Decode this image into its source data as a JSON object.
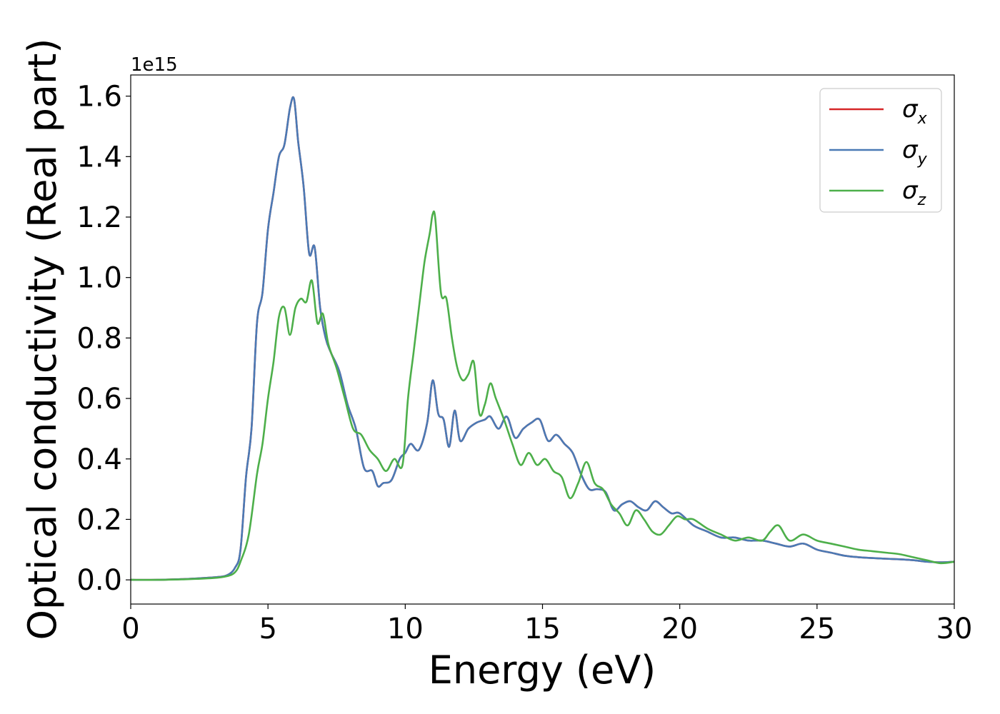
{
  "chart_data": {
    "type": "line",
    "xlabel": "Energy (eV)",
    "ylabel": "Optical conductivity (Real part)",
    "y_offset_text": "1e15",
    "y_scale": 1000000000000000.0,
    "xlim": [
      0,
      30
    ],
    "ylim": [
      -0.08,
      1.67
    ],
    "xticks": [
      0,
      5,
      10,
      15,
      20,
      25,
      30
    ],
    "xtick_labels": [
      "0",
      "5",
      "10",
      "15",
      "20",
      "25",
      "30"
    ],
    "yticks": [
      0.0,
      0.2,
      0.4,
      0.6,
      0.8,
      1.0,
      1.2,
      1.4,
      1.6
    ],
    "ytick_labels": [
      "0.0",
      "0.2",
      "0.4",
      "0.6",
      "0.8",
      "1.0",
      "1.2",
      "1.4",
      "1.6"
    ],
    "grid": false,
    "legend_position": "top-right",
    "series": [
      {
        "name": "σx",
        "symbol": "σ",
        "sub": "x",
        "color": "#d62728",
        "x": [
          0,
          1,
          2,
          3,
          3.5,
          3.8,
          4.0,
          4.2,
          4.4,
          4.6,
          4.8,
          5.0,
          5.2,
          5.4,
          5.6,
          5.8,
          5.95,
          6.1,
          6.3,
          6.5,
          6.7,
          6.9,
          7.1,
          7.3,
          7.6,
          7.9,
          8.2,
          8.5,
          8.8,
          9.0,
          9.2,
          9.5,
          9.8,
          10.0,
          10.2,
          10.5,
          10.8,
          11.0,
          11.2,
          11.4,
          11.6,
          11.8,
          12.0,
          12.3,
          12.6,
          12.9,
          13.1,
          13.4,
          13.7,
          14.0,
          14.3,
          14.6,
          14.9,
          15.2,
          15.5,
          15.8,
          16.1,
          16.4,
          16.7,
          17.0,
          17.3,
          17.6,
          17.9,
          18.2,
          18.5,
          18.8,
          19.1,
          19.4,
          19.7,
          20.0,
          20.5,
          21.0,
          21.5,
          22.0,
          22.5,
          23.0,
          23.5,
          24.0,
          24.5,
          25.0,
          25.5,
          26.0,
          26.5,
          27.0,
          27.5,
          28.0,
          28.5,
          29.0,
          29.5,
          30.0
        ],
        "y": [
          0.0,
          0.0,
          0.003,
          0.008,
          0.015,
          0.04,
          0.1,
          0.34,
          0.5,
          0.85,
          0.95,
          1.16,
          1.28,
          1.4,
          1.44,
          1.56,
          1.59,
          1.45,
          1.3,
          1.08,
          1.1,
          0.9,
          0.8,
          0.75,
          0.69,
          0.58,
          0.5,
          0.37,
          0.36,
          0.31,
          0.32,
          0.33,
          0.4,
          0.42,
          0.45,
          0.43,
          0.52,
          0.66,
          0.55,
          0.53,
          0.44,
          0.56,
          0.46,
          0.5,
          0.52,
          0.53,
          0.54,
          0.5,
          0.54,
          0.47,
          0.5,
          0.52,
          0.53,
          0.46,
          0.48,
          0.45,
          0.42,
          0.35,
          0.3,
          0.3,
          0.29,
          0.23,
          0.25,
          0.26,
          0.24,
          0.23,
          0.26,
          0.24,
          0.22,
          0.22,
          0.18,
          0.16,
          0.14,
          0.14,
          0.13,
          0.13,
          0.12,
          0.11,
          0.12,
          0.1,
          0.09,
          0.08,
          0.075,
          0.072,
          0.07,
          0.068,
          0.065,
          0.06,
          0.058,
          0.06
        ]
      },
      {
        "name": "σy",
        "symbol": "σ",
        "sub": "y",
        "color": "#4a7ab5",
        "x": [
          0,
          1,
          2,
          3,
          3.5,
          3.8,
          4.0,
          4.2,
          4.4,
          4.6,
          4.8,
          5.0,
          5.2,
          5.4,
          5.6,
          5.8,
          5.95,
          6.1,
          6.3,
          6.5,
          6.7,
          6.9,
          7.1,
          7.3,
          7.6,
          7.9,
          8.2,
          8.5,
          8.8,
          9.0,
          9.2,
          9.5,
          9.8,
          10.0,
          10.2,
          10.5,
          10.8,
          11.0,
          11.2,
          11.4,
          11.6,
          11.8,
          12.0,
          12.3,
          12.6,
          12.9,
          13.1,
          13.4,
          13.7,
          14.0,
          14.3,
          14.6,
          14.9,
          15.2,
          15.5,
          15.8,
          16.1,
          16.4,
          16.7,
          17.0,
          17.3,
          17.6,
          17.9,
          18.2,
          18.5,
          18.8,
          19.1,
          19.4,
          19.7,
          20.0,
          20.5,
          21.0,
          21.5,
          22.0,
          22.5,
          23.0,
          23.5,
          24.0,
          24.5,
          25.0,
          25.5,
          26.0,
          26.5,
          27.0,
          27.5,
          28.0,
          28.5,
          29.0,
          29.5,
          30.0
        ],
        "y": [
          0.0,
          0.0,
          0.003,
          0.008,
          0.015,
          0.04,
          0.1,
          0.34,
          0.5,
          0.85,
          0.95,
          1.16,
          1.28,
          1.4,
          1.44,
          1.56,
          1.59,
          1.45,
          1.3,
          1.08,
          1.1,
          0.9,
          0.8,
          0.75,
          0.69,
          0.58,
          0.5,
          0.37,
          0.36,
          0.31,
          0.32,
          0.33,
          0.4,
          0.42,
          0.45,
          0.43,
          0.52,
          0.66,
          0.55,
          0.53,
          0.44,
          0.56,
          0.46,
          0.5,
          0.52,
          0.53,
          0.54,
          0.5,
          0.54,
          0.47,
          0.5,
          0.52,
          0.53,
          0.46,
          0.48,
          0.45,
          0.42,
          0.35,
          0.3,
          0.3,
          0.29,
          0.23,
          0.25,
          0.26,
          0.24,
          0.23,
          0.26,
          0.24,
          0.22,
          0.22,
          0.18,
          0.16,
          0.14,
          0.14,
          0.13,
          0.13,
          0.12,
          0.11,
          0.12,
          0.1,
          0.09,
          0.08,
          0.075,
          0.072,
          0.07,
          0.068,
          0.065,
          0.06,
          0.058,
          0.06
        ]
      },
      {
        "name": "σz",
        "symbol": "σ",
        "sub": "z",
        "color": "#4daf4a",
        "x": [
          0,
          1,
          2,
          3,
          3.5,
          3.8,
          4.0,
          4.3,
          4.6,
          4.8,
          5.0,
          5.2,
          5.4,
          5.6,
          5.8,
          6.0,
          6.2,
          6.4,
          6.6,
          6.8,
          7.0,
          7.2,
          7.5,
          7.8,
          8.1,
          8.4,
          8.7,
          9.0,
          9.3,
          9.6,
          9.9,
          10.1,
          10.3,
          10.5,
          10.7,
          10.9,
          11.0,
          11.1,
          11.3,
          11.5,
          11.7,
          11.9,
          12.1,
          12.3,
          12.5,
          12.7,
          12.9,
          13.1,
          13.3,
          13.6,
          13.9,
          14.2,
          14.5,
          14.8,
          15.1,
          15.4,
          15.7,
          16.0,
          16.3,
          16.6,
          16.9,
          17.2,
          17.5,
          17.8,
          18.1,
          18.4,
          18.7,
          19.0,
          19.3,
          19.6,
          19.9,
          20.2,
          20.5,
          21.0,
          21.5,
          22.0,
          22.5,
          23.0,
          23.3,
          23.6,
          24.0,
          24.5,
          25.0,
          25.5,
          26.0,
          26.5,
          27.0,
          27.5,
          28.0,
          28.5,
          29.0,
          29.5,
          30.0
        ],
        "y": [
          0.0,
          0.0,
          0.002,
          0.006,
          0.012,
          0.025,
          0.06,
          0.15,
          0.35,
          0.45,
          0.6,
          0.72,
          0.87,
          0.9,
          0.81,
          0.9,
          0.93,
          0.92,
          0.99,
          0.85,
          0.88,
          0.78,
          0.7,
          0.6,
          0.5,
          0.48,
          0.43,
          0.4,
          0.36,
          0.4,
          0.38,
          0.6,
          0.75,
          0.9,
          1.05,
          1.15,
          1.21,
          1.19,
          0.95,
          0.93,
          0.8,
          0.7,
          0.66,
          0.68,
          0.72,
          0.55,
          0.58,
          0.65,
          0.6,
          0.53,
          0.45,
          0.38,
          0.42,
          0.38,
          0.4,
          0.36,
          0.34,
          0.27,
          0.32,
          0.39,
          0.32,
          0.3,
          0.25,
          0.22,
          0.18,
          0.23,
          0.2,
          0.16,
          0.15,
          0.18,
          0.21,
          0.2,
          0.2,
          0.17,
          0.15,
          0.13,
          0.14,
          0.13,
          0.16,
          0.18,
          0.13,
          0.15,
          0.13,
          0.12,
          0.11,
          0.1,
          0.095,
          0.09,
          0.085,
          0.075,
          0.065,
          0.055,
          0.06
        ]
      }
    ]
  }
}
